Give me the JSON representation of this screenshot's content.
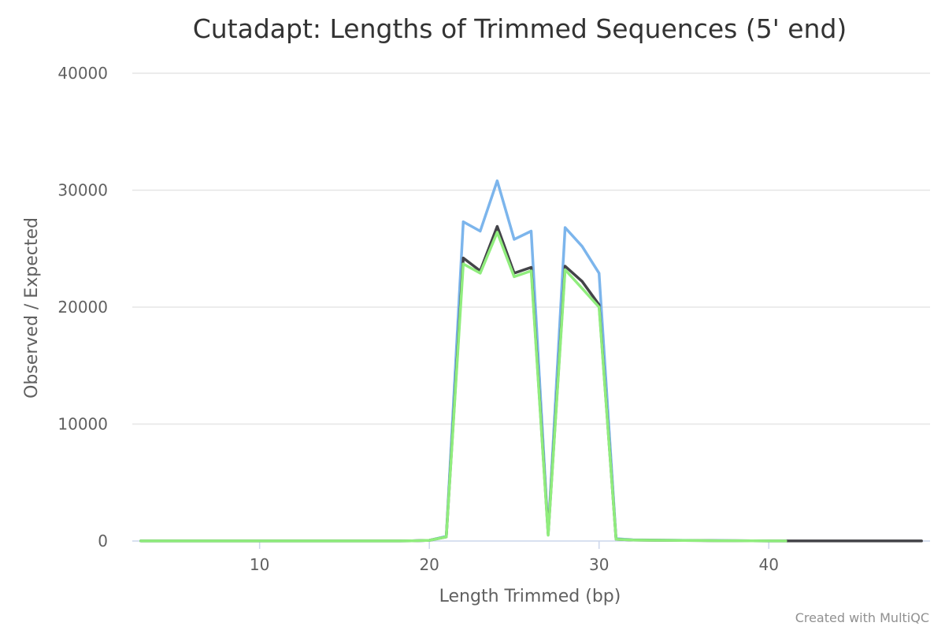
{
  "chart_data": {
    "type": "line",
    "title": "Cutadapt: Lengths of Trimmed Sequences (5' end)",
    "xlabel": "Length Trimmed (bp)",
    "ylabel": "Observed / Expected",
    "xlim": [
      2.5,
      49.5
    ],
    "ylim": [
      0,
      40000
    ],
    "xticks": [
      10,
      20,
      30,
      40
    ],
    "yticks": [
      0,
      10000,
      20000,
      30000,
      40000
    ],
    "grid": true,
    "legend": "none",
    "x": [
      3,
      4,
      5,
      6,
      7,
      8,
      9,
      10,
      11,
      12,
      13,
      14,
      15,
      16,
      17,
      18,
      19,
      20,
      21,
      22,
      23,
      24,
      25,
      26,
      27,
      28,
      29,
      30,
      31,
      32,
      33,
      34,
      35,
      36,
      37,
      38,
      39,
      40,
      41,
      42,
      43,
      44,
      45,
      46,
      47,
      48,
      49
    ],
    "series": [
      {
        "color": "#7cb5ec",
        "values": [
          10,
          10,
          10,
          10,
          10,
          10,
          10,
          10,
          10,
          10,
          10,
          10,
          10,
          10,
          10,
          10,
          20,
          60,
          400,
          27300,
          26500,
          30800,
          25800,
          26500,
          700,
          26800,
          25200,
          22900,
          200,
          100,
          80,
          70,
          60,
          50,
          40,
          30,
          20,
          10,
          10,
          null,
          null,
          null,
          null,
          null,
          null,
          null,
          null
        ]
      },
      {
        "color": "#434348",
        "values": [
          10,
          10,
          10,
          10,
          10,
          10,
          10,
          10,
          10,
          10,
          10,
          10,
          10,
          10,
          10,
          10,
          20,
          60,
          350,
          24200,
          23100,
          26900,
          22900,
          23400,
          600,
          23500,
          22200,
          20200,
          150,
          80,
          70,
          60,
          50,
          40,
          30,
          30,
          20,
          10,
          10,
          10,
          10,
          10,
          10,
          10,
          10,
          10,
          10
        ]
      },
      {
        "color": "#90ed7d",
        "values": [
          10,
          10,
          10,
          10,
          10,
          10,
          10,
          10,
          10,
          10,
          10,
          10,
          10,
          10,
          10,
          10,
          20,
          60,
          350,
          23700,
          22900,
          26400,
          22600,
          23100,
          500,
          23200,
          21600,
          20000,
          150,
          80,
          70,
          60,
          50,
          40,
          30,
          30,
          20,
          10,
          10,
          null,
          null,
          null,
          null,
          null,
          null,
          null,
          null
        ]
      }
    ]
  },
  "credits": "Created with MultiQC"
}
